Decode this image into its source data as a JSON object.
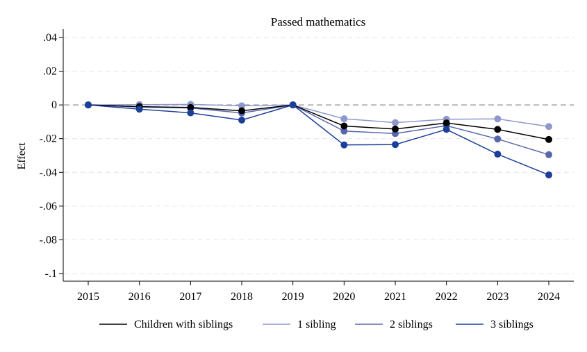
{
  "chart_data": {
    "type": "line",
    "title": "Passed mathematics",
    "xlabel": "",
    "ylabel": "Effect",
    "x": [
      2015,
      2016,
      2017,
      2018,
      2019,
      2020,
      2021,
      2022,
      2023,
      2024
    ],
    "x_tick_labels": [
      "2015",
      "2016",
      "2017",
      "2018",
      "2019",
      "2020",
      "2021",
      "2022",
      "2023",
      "2024"
    ],
    "ylim": [
      -0.1,
      0.04
    ],
    "y_ticks": [
      0.04,
      0.02,
      0,
      -0.02,
      -0.04,
      -0.06,
      -0.08,
      -0.1
    ],
    "y_tick_labels": [
      ".04",
      ".02",
      "0",
      "-.02",
      "-.04",
      "-.06",
      "-.08",
      "-.1"
    ],
    "grid": "horizontal dashed",
    "reference_line": 0,
    "legend_position": "bottom",
    "series": [
      {
        "name": "Children with siblings",
        "color": "#000000",
        "values": [
          0,
          -0.001,
          -0.0015,
          -0.0035,
          0,
          -0.0125,
          -0.0143,
          -0.0107,
          -0.0145,
          -0.0205
        ]
      },
      {
        "name": "1 sibling",
        "color": "#8f98cc",
        "values": [
          0,
          0.0002,
          0.0003,
          -0.0005,
          0,
          -0.0082,
          -0.0105,
          -0.0085,
          -0.0083,
          -0.0128
        ]
      },
      {
        "name": "2 siblings",
        "color": "#5867ad",
        "values": [
          0,
          -0.0012,
          -0.0018,
          -0.0048,
          0,
          -0.0155,
          -0.017,
          -0.0123,
          -0.0202,
          -0.0295
        ]
      },
      {
        "name": "3 siblings",
        "color": "#1c3f9a",
        "values": [
          0,
          -0.0025,
          -0.0047,
          -0.009,
          0,
          -0.0237,
          -0.0235,
          -0.0145,
          -0.0292,
          -0.0415
        ]
      }
    ]
  }
}
